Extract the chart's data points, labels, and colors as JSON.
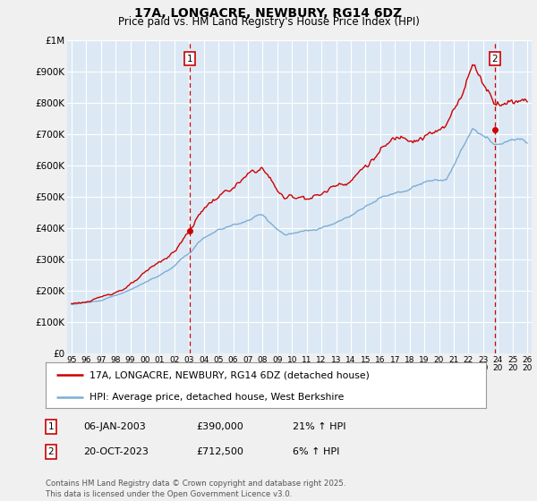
{
  "title": "17A, LONGACRE, NEWBURY, RG14 6DZ",
  "subtitle": "Price paid vs. HM Land Registry's House Price Index (HPI)",
  "yticks": [
    0,
    100000,
    200000,
    300000,
    400000,
    500000,
    600000,
    700000,
    800000,
    900000,
    1000000
  ],
  "ytick_labels": [
    "£0",
    "£100K",
    "£200K",
    "£300K",
    "£400K",
    "£500K",
    "£600K",
    "£700K",
    "£800K",
    "£900K",
    "£1M"
  ],
  "xlim_start": 1994.7,
  "xlim_end": 2026.3,
  "ylim_min": 0,
  "ylim_max": 1000000,
  "red_color": "#cc0000",
  "blue_color": "#7dadd4",
  "vline_color": "#cc0000",
  "bg_color": "#f0f0f0",
  "plot_bg": "#dce9f5",
  "grid_color": "#ffffff",
  "transaction1_date": "06-JAN-2003",
  "transaction1_price": "£390,000",
  "transaction1_hpi": "21% ↑ HPI",
  "transaction1_x": 2003.02,
  "transaction1_y": 390000,
  "transaction2_date": "20-OCT-2023",
  "transaction2_price": "£712,500",
  "transaction2_hpi": "6% ↑ HPI",
  "transaction2_x": 2023.8,
  "transaction2_y": 712500,
  "legend_line1": "17A, LONGACRE, NEWBURY, RG14 6DZ (detached house)",
  "legend_line2": "HPI: Average price, detached house, West Berkshire",
  "footer": "Contains HM Land Registry data © Crown copyright and database right 2025.\nThis data is licensed under the Open Government Licence v3.0.",
  "xticks": [
    1995,
    1996,
    1997,
    1998,
    1999,
    2000,
    2001,
    2002,
    2003,
    2004,
    2005,
    2006,
    2007,
    2008,
    2009,
    2010,
    2011,
    2012,
    2013,
    2014,
    2015,
    2016,
    2017,
    2018,
    2019,
    2020,
    2021,
    2022,
    2023,
    2024,
    2025,
    2026
  ]
}
